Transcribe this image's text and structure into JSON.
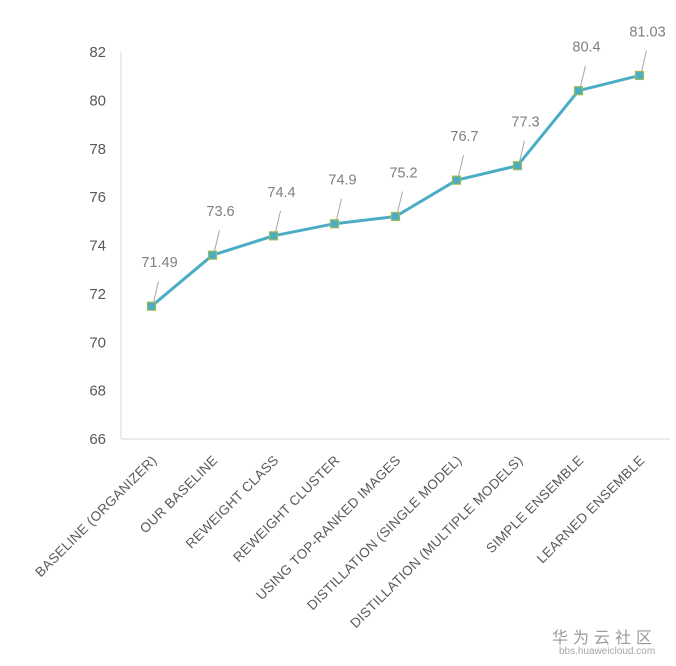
{
  "chart_data": {
    "type": "line",
    "title": "",
    "xlabel": "",
    "ylabel": "",
    "categories": [
      "BASELINE (ORGANIZER)",
      "OUR BASELINE",
      "REWEIGHT CLASS",
      "REWEIGHT CLUSTER",
      "USING TOP-RANKED IMAGES",
      "DISTILLATION (SINGLE MODEL)",
      "DISTILLATION (MULTIPLE MODELS)",
      "SIMPLE ENSEMBLE",
      "LEARNED ENSEMBLE"
    ],
    "series": [
      {
        "values": [
          71.49,
          73.6,
          74.4,
          74.9,
          75.2,
          76.7,
          77.3,
          80.4,
          81.03
        ]
      }
    ],
    "data_labels": [
      "71.49",
      "73.6",
      "74.4",
      "74.9",
      "75.2",
      "76.7",
      "77.3",
      "80.4",
      "81.03"
    ],
    "ylim": [
      66,
      82
    ],
    "yticks": [
      66,
      68,
      70,
      72,
      74,
      76,
      78,
      80,
      82
    ],
    "grid": false,
    "legend": "none",
    "colors": {
      "line": "#4BACC6",
      "marker_fill": "#4BACC6",
      "marker_edge": "#9BBB59",
      "axis": "#d9d9d9",
      "leader": "#a6a6a6"
    }
  },
  "watermark": {
    "title": "华为云社区",
    "url": "bbs.huaweicloud.com"
  }
}
